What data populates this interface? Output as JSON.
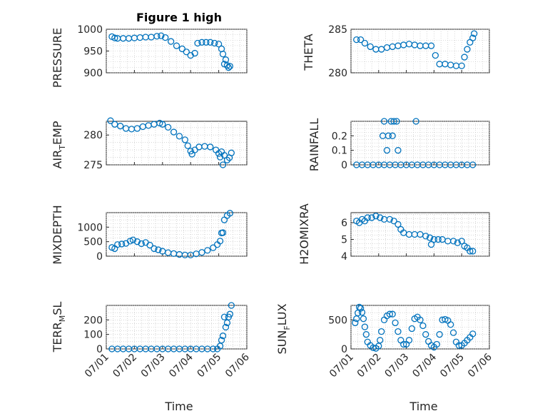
{
  "figure": {
    "title": "Figure 1 high",
    "marker_color": "#0072BD",
    "marker": "circle",
    "grid": true,
    "date_ticks": [
      "07/01",
      "07/02",
      "07/03",
      "07/04",
      "07/05",
      "07/06"
    ],
    "xlabel": "Time"
  },
  "chart_data": [
    {
      "type": "scatter",
      "ylabel": "PRESSURE",
      "ylim": [
        900,
        1000
      ],
      "yticks": [
        900,
        950,
        1000
      ],
      "xlim": [
        "07/01",
        "07/06"
      ],
      "points": [
        [
          1.2,
          983
        ],
        [
          1.3,
          980
        ],
        [
          1.4,
          979
        ],
        [
          1.6,
          979
        ],
        [
          1.8,
          979
        ],
        [
          2.0,
          980
        ],
        [
          2.2,
          981
        ],
        [
          2.4,
          982
        ],
        [
          2.6,
          982
        ],
        [
          2.8,
          984
        ],
        [
          2.95,
          985
        ],
        [
          3.1,
          981
        ],
        [
          3.3,
          972
        ],
        [
          3.5,
          962
        ],
        [
          3.7,
          955
        ],
        [
          3.85,
          948
        ],
        [
          4.0,
          940
        ],
        [
          4.15,
          945
        ],
        [
          4.25,
          968
        ],
        [
          4.4,
          970
        ],
        [
          4.55,
          970
        ],
        [
          4.7,
          970
        ],
        [
          4.85,
          968
        ],
        [
          5.0,
          966
        ],
        [
          5.1,
          955
        ],
        [
          5.15,
          943
        ],
        [
          5.2,
          920
        ],
        [
          5.25,
          930
        ],
        [
          5.3,
          917
        ],
        [
          5.35,
          912
        ],
        [
          5.4,
          915
        ]
      ]
    },
    {
      "type": "scatter",
      "ylabel": "THETA",
      "ylim": [
        280,
        285
      ],
      "yticks": [
        280,
        285
      ],
      "xlim": [
        "07/01",
        "07/06"
      ],
      "points": [
        [
          1.2,
          283.8
        ],
        [
          1.35,
          283.8
        ],
        [
          1.5,
          283.4
        ],
        [
          1.7,
          283.0
        ],
        [
          1.9,
          282.7
        ],
        [
          2.1,
          282.7
        ],
        [
          2.3,
          282.9
        ],
        [
          2.5,
          283.0
        ],
        [
          2.7,
          283.1
        ],
        [
          2.9,
          283.2
        ],
        [
          3.1,
          283.3
        ],
        [
          3.3,
          283.2
        ],
        [
          3.5,
          283.1
        ],
        [
          3.7,
          283.1
        ],
        [
          3.9,
          283.1
        ],
        [
          4.05,
          282.0
        ],
        [
          4.2,
          281.0
        ],
        [
          4.4,
          281.0
        ],
        [
          4.6,
          280.9
        ],
        [
          4.8,
          280.8
        ],
        [
          5.0,
          280.8
        ],
        [
          5.1,
          281.8
        ],
        [
          5.2,
          282.7
        ],
        [
          5.3,
          283.5
        ],
        [
          5.4,
          284.0
        ],
        [
          5.45,
          284.5
        ]
      ]
    },
    {
      "type": "scatter",
      "ylabel": "AIR_TEMP",
      "ylim": [
        275,
        282.3
      ],
      "yticks": [
        275,
        280
      ],
      "xlim": [
        "07/01",
        "07/06"
      ],
      "points": [
        [
          1.15,
          282.4
        ],
        [
          1.3,
          281.8
        ],
        [
          1.5,
          281.5
        ],
        [
          1.7,
          281.1
        ],
        [
          1.9,
          281.0
        ],
        [
          2.1,
          281.1
        ],
        [
          2.3,
          281.4
        ],
        [
          2.5,
          281.6
        ],
        [
          2.7,
          281.8
        ],
        [
          2.9,
          282.0
        ],
        [
          3.0,
          281.8
        ],
        [
          3.2,
          281.3
        ],
        [
          3.4,
          280.5
        ],
        [
          3.6,
          279.8
        ],
        [
          3.8,
          279.2
        ],
        [
          3.9,
          278.2
        ],
        [
          4.0,
          277.3
        ],
        [
          4.05,
          276.8
        ],
        [
          4.15,
          277.5
        ],
        [
          4.3,
          278.0
        ],
        [
          4.5,
          278.1
        ],
        [
          4.7,
          278.0
        ],
        [
          4.9,
          277.5
        ],
        [
          5.0,
          276.9
        ],
        [
          5.05,
          276.3
        ],
        [
          5.1,
          277.2
        ],
        [
          5.15,
          275.0
        ],
        [
          5.2,
          276.6
        ],
        [
          5.3,
          275.8
        ],
        [
          5.38,
          276.2
        ],
        [
          5.45,
          277.0
        ]
      ]
    },
    {
      "type": "scatter",
      "ylabel": "RAINFALL",
      "ylim": [
        0,
        0.3
      ],
      "yticks": [
        0,
        0.1,
        0.2
      ],
      "xlim": [
        "07/01",
        "07/06"
      ],
      "points": [
        [
          1.2,
          0
        ],
        [
          1.4,
          0
        ],
        [
          1.6,
          0
        ],
        [
          1.8,
          0
        ],
        [
          2.0,
          0
        ],
        [
          2.2,
          0
        ],
        [
          2.4,
          0
        ],
        [
          2.6,
          0
        ],
        [
          2.8,
          0
        ],
        [
          3.0,
          0
        ],
        [
          3.2,
          0
        ],
        [
          3.4,
          0
        ],
        [
          3.6,
          0
        ],
        [
          3.8,
          0
        ],
        [
          4.0,
          0
        ],
        [
          4.2,
          0
        ],
        [
          4.4,
          0
        ],
        [
          4.6,
          0
        ],
        [
          4.8,
          0
        ],
        [
          5.0,
          0
        ],
        [
          5.2,
          0
        ],
        [
          5.4,
          0
        ],
        [
          2.15,
          0.2
        ],
        [
          2.2,
          0.3
        ],
        [
          2.3,
          0.1
        ],
        [
          2.35,
          0.2
        ],
        [
          2.45,
          0.3
        ],
        [
          2.5,
          0.2
        ],
        [
          2.55,
          0.3
        ],
        [
          2.65,
          0.3
        ],
        [
          2.7,
          0.1
        ],
        [
          3.35,
          0.3
        ]
      ]
    },
    {
      "type": "scatter",
      "ylabel": "MIXDEPTH",
      "ylim": [
        0,
        1500
      ],
      "yticks": [
        0,
        500,
        1000
      ],
      "xlim": [
        "07/01",
        "07/06"
      ],
      "points": [
        [
          1.2,
          300
        ],
        [
          1.3,
          260
        ],
        [
          1.4,
          400
        ],
        [
          1.55,
          420
        ],
        [
          1.7,
          440
        ],
        [
          1.85,
          520
        ],
        [
          1.95,
          560
        ],
        [
          2.1,
          500
        ],
        [
          2.25,
          430
        ],
        [
          2.4,
          470
        ],
        [
          2.55,
          380
        ],
        [
          2.7,
          260
        ],
        [
          2.85,
          220
        ],
        [
          3.0,
          170
        ],
        [
          3.2,
          120
        ],
        [
          3.4,
          90
        ],
        [
          3.6,
          60
        ],
        [
          3.8,
          40
        ],
        [
          4.0,
          40
        ],
        [
          4.2,
          80
        ],
        [
          4.4,
          130
        ],
        [
          4.6,
          200
        ],
        [
          4.8,
          290
        ],
        [
          4.95,
          400
        ],
        [
          5.05,
          520
        ],
        [
          5.1,
          800
        ],
        [
          5.15,
          810
        ],
        [
          5.2,
          1250
        ],
        [
          5.3,
          1400
        ],
        [
          5.4,
          1480
        ]
      ]
    },
    {
      "type": "scatter",
      "ylabel": "H2OMIXRA",
      "ylim": [
        4,
        6.6
      ],
      "yticks": [
        4,
        5,
        6
      ],
      "xlim": [
        "07/01",
        "07/06"
      ],
      "points": [
        [
          1.2,
          6.1
        ],
        [
          1.3,
          6.0
        ],
        [
          1.4,
          6.2
        ],
        [
          1.5,
          6.1
        ],
        [
          1.6,
          6.3
        ],
        [
          1.75,
          6.3
        ],
        [
          1.9,
          6.4
        ],
        [
          2.05,
          6.3
        ],
        [
          2.2,
          6.2
        ],
        [
          2.4,
          6.2
        ],
        [
          2.55,
          6.1
        ],
        [
          2.7,
          5.9
        ],
        [
          2.8,
          5.6
        ],
        [
          2.9,
          5.4
        ],
        [
          3.1,
          5.3
        ],
        [
          3.3,
          5.3
        ],
        [
          3.5,
          5.3
        ],
        [
          3.7,
          5.2
        ],
        [
          3.85,
          5.1
        ],
        [
          3.9,
          4.7
        ],
        [
          4.0,
          5.0
        ],
        [
          4.15,
          5.0
        ],
        [
          4.3,
          5.0
        ],
        [
          4.5,
          4.9
        ],
        [
          4.7,
          4.9
        ],
        [
          4.85,
          4.8
        ],
        [
          5.0,
          4.9
        ],
        [
          5.1,
          4.6
        ],
        [
          5.2,
          4.5
        ],
        [
          5.3,
          4.3
        ],
        [
          5.4,
          4.3
        ]
      ]
    },
    {
      "type": "scatter",
      "ylabel": "TERR_MSL",
      "ylim": [
        0,
        300
      ],
      "yticks": [
        0,
        100,
        200
      ],
      "xlim": [
        "07/01",
        "07/06"
      ],
      "points": [
        [
          1.2,
          0
        ],
        [
          1.4,
          0
        ],
        [
          1.6,
          0
        ],
        [
          1.8,
          0
        ],
        [
          2.0,
          0
        ],
        [
          2.2,
          0
        ],
        [
          2.4,
          0
        ],
        [
          2.6,
          0
        ],
        [
          2.8,
          0
        ],
        [
          3.0,
          0
        ],
        [
          3.2,
          0
        ],
        [
          3.4,
          0
        ],
        [
          3.6,
          0
        ],
        [
          3.8,
          0
        ],
        [
          4.0,
          0
        ],
        [
          4.2,
          0
        ],
        [
          4.4,
          0
        ],
        [
          4.6,
          0
        ],
        [
          4.8,
          0
        ],
        [
          4.95,
          0
        ],
        [
          5.05,
          20
        ],
        [
          5.1,
          60
        ],
        [
          5.15,
          90
        ],
        [
          5.2,
          220
        ],
        [
          5.25,
          150
        ],
        [
          5.3,
          180
        ],
        [
          5.35,
          220
        ],
        [
          5.4,
          240
        ],
        [
          5.45,
          300
        ]
      ]
    },
    {
      "type": "scatter",
      "ylabel": "SUN_FLUX",
      "ylim": [
        0,
        750
      ],
      "yticks": [
        0,
        500
      ],
      "xlim": [
        "07/01",
        "07/06"
      ],
      "points": [
        [
          1.15,
          450
        ],
        [
          1.2,
          520
        ],
        [
          1.25,
          620
        ],
        [
          1.3,
          720
        ],
        [
          1.35,
          700
        ],
        [
          1.4,
          630
        ],
        [
          1.45,
          520
        ],
        [
          1.5,
          380
        ],
        [
          1.55,
          250
        ],
        [
          1.6,
          120
        ],
        [
          1.7,
          60
        ],
        [
          1.8,
          20
        ],
        [
          1.9,
          10
        ],
        [
          2.0,
          50
        ],
        [
          2.05,
          150
        ],
        [
          2.1,
          300
        ],
        [
          2.2,
          500
        ],
        [
          2.3,
          570
        ],
        [
          2.4,
          600
        ],
        [
          2.5,
          600
        ],
        [
          2.6,
          450
        ],
        [
          2.7,
          300
        ],
        [
          2.8,
          150
        ],
        [
          2.9,
          80
        ],
        [
          3.0,
          80
        ],
        [
          3.1,
          150
        ],
        [
          3.2,
          350
        ],
        [
          3.3,
          520
        ],
        [
          3.4,
          550
        ],
        [
          3.5,
          500
        ],
        [
          3.6,
          400
        ],
        [
          3.7,
          250
        ],
        [
          3.8,
          130
        ],
        [
          3.9,
          60
        ],
        [
          4.0,
          30
        ],
        [
          4.1,
          80
        ],
        [
          4.2,
          250
        ],
        [
          4.3,
          500
        ],
        [
          4.4,
          510
        ],
        [
          4.5,
          490
        ],
        [
          4.6,
          420
        ],
        [
          4.7,
          280
        ],
        [
          4.8,
          120
        ],
        [
          4.9,
          60
        ],
        [
          5.0,
          60
        ],
        [
          5.1,
          100
        ],
        [
          5.2,
          150
        ],
        [
          5.3,
          200
        ],
        [
          5.4,
          260
        ]
      ]
    }
  ]
}
